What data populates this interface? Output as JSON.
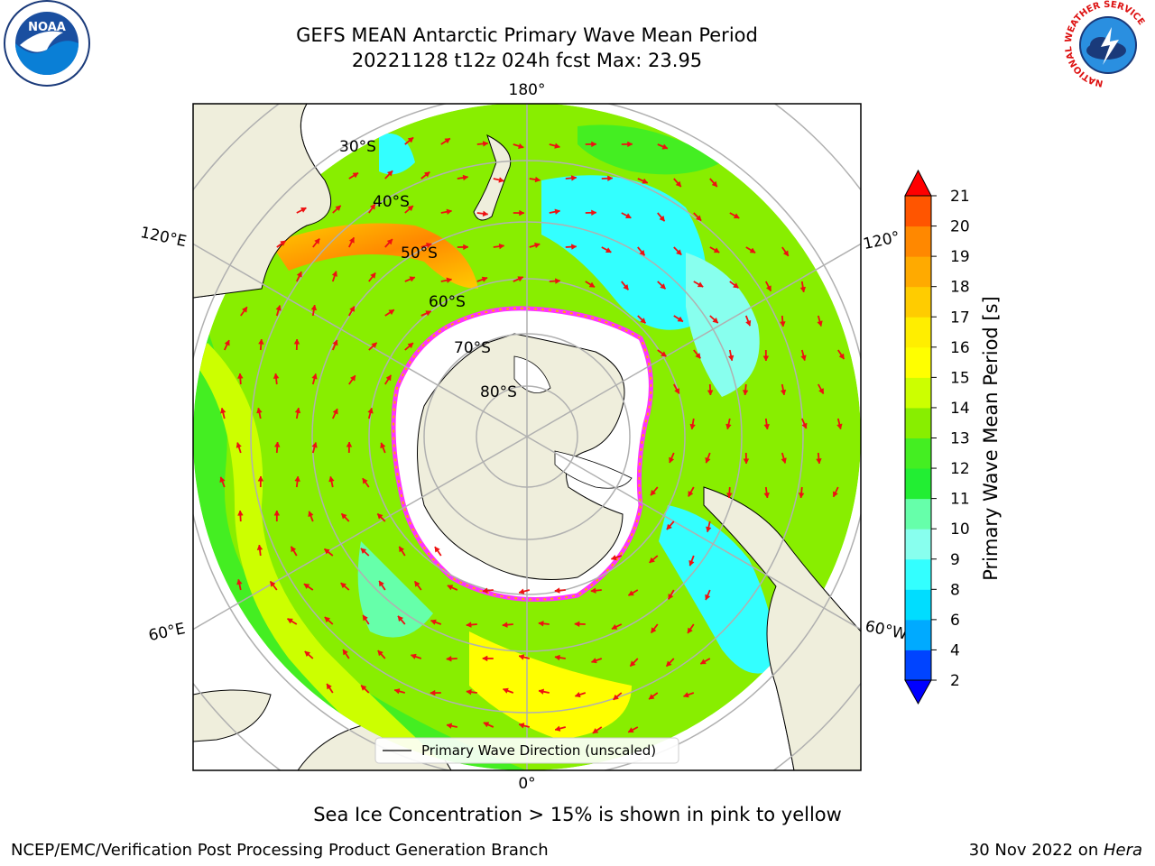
{
  "header": {
    "title_line1": "GEFS MEAN Antarctic Primary Wave Mean Period",
    "title_line2": "20221128 t12z 024h fcst   Max: 23.95"
  },
  "logos": {
    "left": {
      "name": "noaa-logo",
      "text": "NOAA"
    },
    "right": {
      "name": "nws-logo",
      "ring_text": "NATIONAL WEATHER SERVICE"
    }
  },
  "map": {
    "projection": "south-polar-stereographic",
    "longitude_labels": {
      "top": "180°",
      "bottom": "0°",
      "left_upper": "120°E",
      "left_lower": "60°E",
      "right_upper": "120°",
      "right_lower": "60°W"
    },
    "latitude_labels": [
      "30°S",
      "40°S",
      "50°S",
      "60°S",
      "70°S",
      "80°S"
    ],
    "legend": "Primary Wave Direction (unscaled)",
    "colors": {
      "land": "#efeedc",
      "sea_ice": "#ffffff",
      "ice_edge": "#ff33ff",
      "arrow": "#ee1111"
    }
  },
  "colorbar": {
    "label": "Primary Wave Mean Period [s]",
    "ticks": [
      "2",
      "4",
      "6",
      "8",
      "9",
      "10",
      "11",
      "12",
      "13",
      "14",
      "15",
      "16",
      "17",
      "18",
      "19",
      "20",
      "21"
    ],
    "colors": [
      "#0044ff",
      "#00aaff",
      "#00ddff",
      "#33ffff",
      "#88ffee",
      "#66ffaa",
      "#22ee33",
      "#44ee22",
      "#88ee00",
      "#ccff00",
      "#ffff00",
      "#ffee00",
      "#ffcc00",
      "#ffaa00",
      "#ff8800",
      "#ff5500",
      "#ff2200"
    ],
    "under_color": "#0000ff",
    "over_color": "#ff0000"
  },
  "caption": "Sea Ice Concentration > 15% is shown in pink to yellow",
  "footer": {
    "left": "NCEP/EMC/Verification Post Processing Product Generation Branch",
    "right_prefix": "30 Nov 2022 on ",
    "right_host": "Hera"
  }
}
